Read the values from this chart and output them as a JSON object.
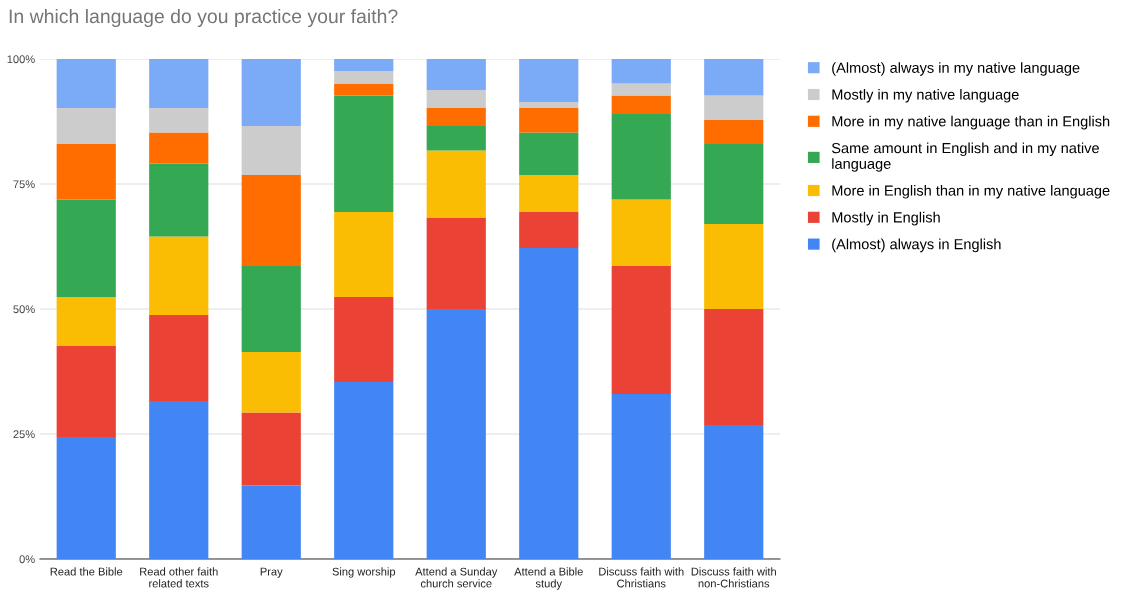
{
  "chart_data": {
    "type": "bar",
    "title": "In which language do you practice your faith?",
    "stacked": true,
    "categories": [
      "Read the Bible",
      "Read other faith related texts",
      "Pray",
      "Sing worship",
      "Attend a Sunday church service",
      "Attend a Bible study",
      "Discuss faith with Christians",
      "Discuss faith with non-Christians"
    ],
    "series": [
      {
        "name": "(Almost) always in English",
        "color": "#4285f4",
        "values": [
          24.4,
          31.6,
          14.7,
          35.4,
          50.0,
          62.2,
          33.0,
          26.8
        ]
      },
      {
        "name": "Mostly in English",
        "color": "#ea4335",
        "values": [
          18.3,
          17.2,
          14.6,
          17.0,
          18.3,
          7.2,
          25.6,
          23.2
        ]
      },
      {
        "name": "More in English than in my native language",
        "color": "#fbbc04",
        "values": [
          9.7,
          15.7,
          12.1,
          17.0,
          13.4,
          7.4,
          13.3,
          17.0
        ]
      },
      {
        "name": "Same amount in English and in my native language",
        "color": "#34a853",
        "values": [
          19.5,
          14.6,
          17.2,
          23.3,
          4.9,
          8.5,
          17.1,
          16.0
        ]
      },
      {
        "name": "More in my native language than in English",
        "color": "#ff6d01",
        "values": [
          11.1,
          6.2,
          18.2,
          2.4,
          3.6,
          4.9,
          3.7,
          4.8
        ]
      },
      {
        "name": "Mostly in my native language",
        "color": "#cccccc",
        "values": [
          7.2,
          4.9,
          9.8,
          2.5,
          3.6,
          1.2,
          2.4,
          4.9
        ]
      },
      {
        "name": "(Almost) always in my native language",
        "color": "#7baaf7",
        "values": [
          9.8,
          9.8,
          13.4,
          2.4,
          6.2,
          8.6,
          4.9,
          7.3
        ]
      }
    ],
    "ylim": [
      0,
      100
    ],
    "yticks": [
      {
        "value": 0,
        "label": "0%"
      },
      {
        "value": 25,
        "label": "25%"
      },
      {
        "value": 50,
        "label": "50%"
      },
      {
        "value": 75,
        "label": "75%"
      },
      {
        "value": 100,
        "label": "100%"
      }
    ],
    "grid": "y",
    "legend": "top right"
  }
}
